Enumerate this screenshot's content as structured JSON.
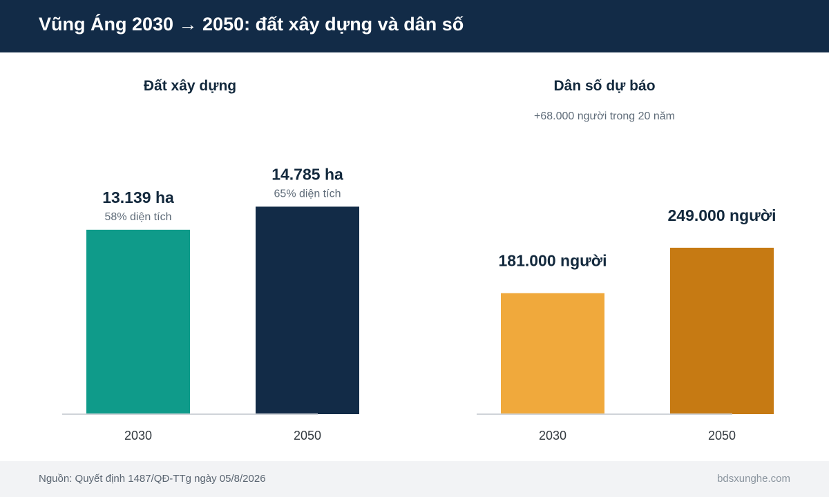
{
  "header": {
    "title": "Vũng Áng 2030 → 2050: đất xây dựng và dân số"
  },
  "chart_data": [
    {
      "type": "bar",
      "title": "Đất xây dựng",
      "subtitle": "",
      "categories": [
        "2030",
        "2050"
      ],
      "values": [
        13139,
        14785
      ],
      "value_labels": [
        "13.139 ha",
        "14.785 ha"
      ],
      "notes": [
        "58% diện tích",
        "65% diện tích"
      ],
      "colors": [
        "#0f9b8a",
        "#122b47"
      ],
      "ylim": [
        0,
        15000
      ]
    },
    {
      "type": "bar",
      "title": "Dân số dự báo",
      "subtitle": "+68.000 người trong 20 năm",
      "categories": [
        "2030",
        "2050"
      ],
      "values": [
        181000,
        249000
      ],
      "value_labels": [
        "181.000 người",
        "249.000 người"
      ],
      "notes": [
        "",
        ""
      ],
      "colors": [
        "#f0a93c",
        "#c67a13"
      ],
      "ylim": [
        0,
        315000
      ]
    }
  ],
  "footer": {
    "source": "Nguồn: Quyết định 1487/QĐ-TTg ngày 05/8/2026",
    "brand": "bdsxunghe.com"
  }
}
